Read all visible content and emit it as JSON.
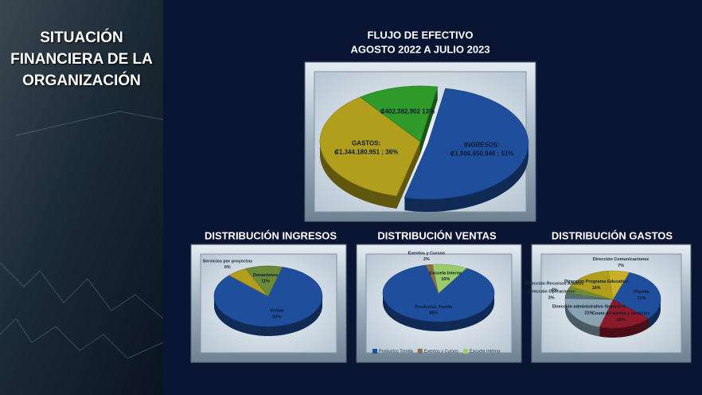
{
  "header": {
    "title": "SITUACIÓN FINANCIERA DE LA ORGANIZACIÓN"
  },
  "chart_data": [
    {
      "type": "pie",
      "title": "FLUJO DE EFECTIVO",
      "subtitle": "AGOSTO 2022 A JULIO 2023",
      "categories": [
        "INGRESOS:",
        "GASTOS:",
        null
      ],
      "values": [
        51,
        36,
        13
      ],
      "value_labels": [
        "₡1.906.650.946 ; 51%",
        "₡1.344.180.951 ; 36%",
        "₡402.382.902 13%"
      ],
      "colors": [
        "#1f4e9c",
        "#b09e1c",
        "#2f9a2a"
      ]
    },
    {
      "type": "pie",
      "title": "DISTRIBUCIÓN INGRESOS",
      "categories": [
        "Ventas",
        "Servicios por proyectos",
        "Donaciones"
      ],
      "values": [
        83,
        6,
        11
      ],
      "value_labels": [
        "83%",
        "6%",
        "11%"
      ],
      "colors": [
        "#1f4e9c",
        "#b09e1c",
        "#6a8a3a"
      ]
    },
    {
      "type": "pie",
      "title": "DISTRIBUCIÓN VENTAS",
      "categories": [
        "Productos Tienda",
        "Eventos y Cursos",
        "Escuela Interna"
      ],
      "values": [
        88,
        2,
        10
      ],
      "value_labels": [
        "88%",
        "2%",
        "10%"
      ],
      "colors": [
        "#1f4e9c",
        "#8b6d4a",
        "#9acd6a"
      ],
      "legend": "bottom"
    },
    {
      "type": "pie",
      "title": "DISTRIBUCIÓN GASTOS",
      "categories": [
        "Planilla",
        "Costo de bienes y servicios",
        "Dirección administrativo financiera",
        "Dirección Operaciones",
        "Dirección Recursos Adultos",
        "Dirección Programa Educativo",
        "Dirección Comunicaciones"
      ],
      "values": [
        31,
        18,
        21,
        3,
        4,
        16,
        7
      ],
      "value_labels": [
        "31%",
        "18%",
        "21%",
        "3%",
        "4%",
        "16%",
        "7%"
      ],
      "colors": [
        "#1f4e9c",
        "#8b1a2a",
        "#8aa4b4",
        "#5a6e7a",
        "#6f8a3a",
        "#b09e1c",
        "#c8b02a"
      ]
    }
  ]
}
